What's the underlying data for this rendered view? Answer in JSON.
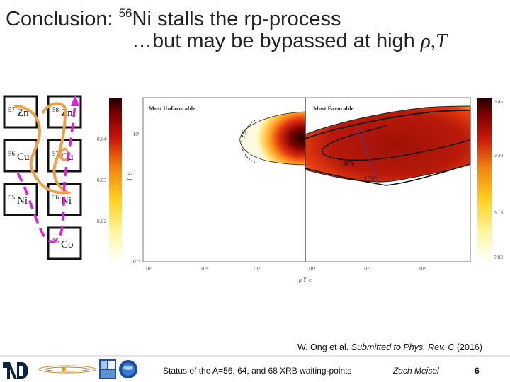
{
  "slide": {
    "title_prefix": "Conclusion: ",
    "title_mass": "56",
    "title_rest": "Ni stalls the rp-process",
    "subtitle_text": "…but may be bypassed at high ",
    "subtitle_vars": "ρ,T",
    "citation_authors": "W. Ong et al. ",
    "citation_journal": "Submitted to Phys. Rev. C",
    "citation_year": " (2016)"
  },
  "nuclide_chart": {
    "cells": [
      {
        "mass": "57",
        "element": "Zn"
      },
      {
        "mass": "58",
        "element": "Zn"
      },
      {
        "mass": "56",
        "element": "Cu"
      },
      {
        "mass": "57",
        "element": "Cu"
      },
      {
        "mass": "55",
        "element": "Ni"
      },
      {
        "mass": "56",
        "element": "Ni"
      },
      {
        "mass": "55",
        "element": "Co"
      }
    ],
    "colors": {
      "orange_path": "#f0a04a",
      "magenta_path": "#e020e0"
    }
  },
  "chart_data": {
    "type": "heatmap",
    "panels": [
      {
        "title": "Most Unfavorable",
        "contour_labels": [
          "1%"
        ]
      },
      {
        "title": "Most Favorable",
        "contour_labels": [
          "30%",
          "10%"
        ]
      }
    ],
    "xlabel": "ρ Y_e",
    "ylabel": "T_9",
    "x_scale": "log",
    "y_scale": "log",
    "x_ticks": [
      "10⁴",
      "10⁵",
      "10⁶",
      "10⁴",
      "10⁵",
      "10⁶"
    ],
    "y_ticks": [
      "10⁰",
      "10⁻¹"
    ],
    "left_colorbar_ticks": [
      0.04,
      0.03,
      0.02
    ],
    "right_colorbar_ticks": [
      0.45,
      0.3,
      0.15,
      0.02
    ],
    "colormap": [
      "#ffffff",
      "#fff6a0",
      "#ffd020",
      "#f08010",
      "#c81808",
      "#7a0000",
      "#200000"
    ]
  },
  "footer": {
    "text": "Status of the A=56, 64, and 68 XRB waiting-points",
    "author": "Zach Meisel",
    "page": "6"
  }
}
